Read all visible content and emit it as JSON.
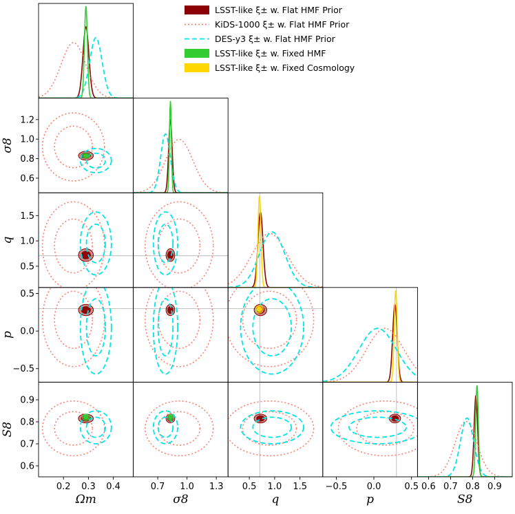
{
  "chart_data": {
    "type": "corner",
    "parameters": [
      {
        "key": "om",
        "label": "Ωm",
        "range": [
          0.1,
          0.48
        ],
        "ticks": [
          0.2,
          0.3,
          0.4
        ],
        "tick_labels": [
          "0.2",
          "0.3",
          "0.4"
        ]
      },
      {
        "key": "s8",
        "label": "σ8",
        "range": [
          0.45,
          1.42
        ],
        "ticks": [
          0.6,
          0.8,
          1.0,
          1.2
        ],
        "tick_labels": [
          "0.6",
          "0.8",
          "1.0",
          "1.2"
        ],
        "xticks": [
          0.7,
          1.0,
          1.3
        ],
        "xtick_labels": [
          "0.7",
          "1.0",
          "1.3"
        ]
      },
      {
        "key": "q",
        "label": "q",
        "range": [
          0.08,
          1.95
        ],
        "ticks": [
          0.5,
          1.0,
          1.5
        ],
        "tick_labels": [
          "0.5",
          "1.0",
          "1.5"
        ]
      },
      {
        "key": "p",
        "label": "p",
        "range": [
          -0.68,
          0.58
        ],
        "ticks": [
          -0.5,
          0.0,
          0.5
        ],
        "tick_labels": [
          "−0.5",
          "0.0",
          "0.5"
        ]
      },
      {
        "key": "S8",
        "label": "S8",
        "range": [
          0.55,
          0.98
        ],
        "ticks": [
          0.6,
          0.7,
          0.8,
          0.9
        ],
        "tick_labels": [
          "0.6",
          "0.7",
          "0.8",
          "0.9"
        ]
      }
    ],
    "truth": {
      "q": 0.707,
      "p": 0.3
    },
    "legend": [
      {
        "label": "LSST-like ξ± w. Flat HMF Prior",
        "color": "#8b0000",
        "style": "patch"
      },
      {
        "label": "KiDS-1000 ξ± w. Flat HMF Prior",
        "color": "#fa8072",
        "style": "dotted"
      },
      {
        "label": "DES-y3 ξ± w. Flat HMF Prior",
        "color": "#00e5e5",
        "style": "dashed"
      },
      {
        "label": "LSST-like ξ± w. Fixed HMF",
        "color": "#32cd32",
        "style": "patch"
      },
      {
        "label": "LSST-like ξ± w. Fixed Cosmology",
        "color": "#ffd700",
        "style": "patch"
      }
    ],
    "series": [
      {
        "name": "LSST-like ξ± w. Flat HMF Prior",
        "color": "#8b0000",
        "mean": {
          "om": 0.29,
          "s8": 0.83,
          "q": 0.72,
          "p": 0.28,
          "S8": 0.815
        },
        "sigma": {
          "om": 0.012,
          "s8": 0.018,
          "q": 0.05,
          "p": 0.03,
          "S8": 0.008
        }
      },
      {
        "name": "KiDS-1000 ξ± w. Flat HMF Prior",
        "color": "#fa8072",
        "mean": {
          "om": 0.24,
          "s8": 0.92,
          "q": 0.9,
          "p": 0.15,
          "S8": 0.77
        },
        "sigma": {
          "om": 0.05,
          "s8": 0.14,
          "q": 0.35,
          "p": 0.25,
          "S8": 0.05
        }
      },
      {
        "name": "DES-y3 ξ± w. Flat HMF Prior",
        "color": "#00e5e5",
        "mean": {
          "om": 0.33,
          "s8": 0.78,
          "q": 0.95,
          "p": 0.05,
          "S8": 0.775
        },
        "sigma": {
          "om": 0.025,
          "s8": 0.05,
          "q": 0.25,
          "p": 0.25,
          "S8": 0.03
        }
      },
      {
        "name": "LSST-like ξ± w. Fixed HMF",
        "color": "#32cd32",
        "mean": {
          "om": 0.29,
          "s8": 0.83,
          "S8": 0.82
        },
        "sigma": {
          "om": 0.006,
          "s8": 0.01,
          "S8": 0.006
        }
      },
      {
        "name": "LSST-like ξ± w. Fixed Cosmology",
        "color": "#ffd700",
        "mean": {
          "q": 0.7,
          "p": 0.29
        },
        "sigma": {
          "q": 0.03,
          "p": 0.02
        }
      }
    ]
  }
}
